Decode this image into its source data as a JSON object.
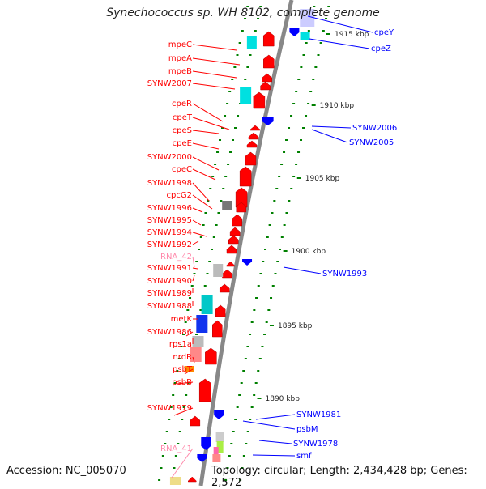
{
  "header": {
    "title": "Synechococcus sp. WH 8102, complete genome"
  },
  "footer": {
    "accession": "Accession: NC_005070",
    "topology": "Topology: circular; Length: 2,434,428 bp; Genes: 2,572"
  },
  "colors": {
    "forward_gene": "#ff0000",
    "reverse_gene": "#0000ff",
    "trna_label": "#ff88aa",
    "kbp_tick": "#008000",
    "backbone": "#888888"
  },
  "kbp_labels": [
    "1915 kbp",
    "1910 kbp",
    "1905 kbp",
    "1900 kbp",
    "1895 kbp",
    "1890 kbp"
  ],
  "left_labels": [
    {
      "name": "mpeC",
      "type": "gene"
    },
    {
      "name": "mpeA",
      "type": "gene"
    },
    {
      "name": "mpeB",
      "type": "gene"
    },
    {
      "name": "SYNW2007",
      "type": "gene"
    },
    {
      "name": "cpeR",
      "type": "gene"
    },
    {
      "name": "cpeT",
      "type": "gene"
    },
    {
      "name": "cpeS",
      "type": "gene"
    },
    {
      "name": "cpeE",
      "type": "gene"
    },
    {
      "name": "SYNW2000",
      "type": "gene"
    },
    {
      "name": "cpeC",
      "type": "gene"
    },
    {
      "name": "SYNW1998",
      "type": "gene"
    },
    {
      "name": "cpcG2",
      "type": "gene"
    },
    {
      "name": "SYNW1996",
      "type": "gene"
    },
    {
      "name": "SYNW1995",
      "type": "gene"
    },
    {
      "name": "SYNW1994",
      "type": "gene"
    },
    {
      "name": "SYNW1992",
      "type": "gene"
    },
    {
      "name": "RNA_42",
      "type": "rna"
    },
    {
      "name": "SYNW1991",
      "type": "gene"
    },
    {
      "name": "SYNW1990",
      "type": "gene"
    },
    {
      "name": "SYNW1989",
      "type": "gene"
    },
    {
      "name": "SYNW1988",
      "type": "gene"
    },
    {
      "name": "metK",
      "type": "gene"
    },
    {
      "name": "SYNW1986",
      "type": "gene"
    },
    {
      "name": "rps1a",
      "type": "gene"
    },
    {
      "name": "nrdR",
      "type": "gene"
    },
    {
      "name": "psbT",
      "type": "gene"
    },
    {
      "name": "psbB",
      "type": "gene"
    },
    {
      "name": "SYNW1979",
      "type": "gene"
    },
    {
      "name": "RNA_41",
      "type": "rna"
    }
  ],
  "right_labels": [
    {
      "name": "cpeY"
    },
    {
      "name": "cpeZ"
    },
    {
      "name": "SYNW2006"
    },
    {
      "name": "SYNW2005"
    },
    {
      "name": "SYNW1993"
    },
    {
      "name": "SYNW1981"
    },
    {
      "name": "psbM"
    },
    {
      "name": "SYNW1978"
    },
    {
      "name": "smf"
    }
  ]
}
